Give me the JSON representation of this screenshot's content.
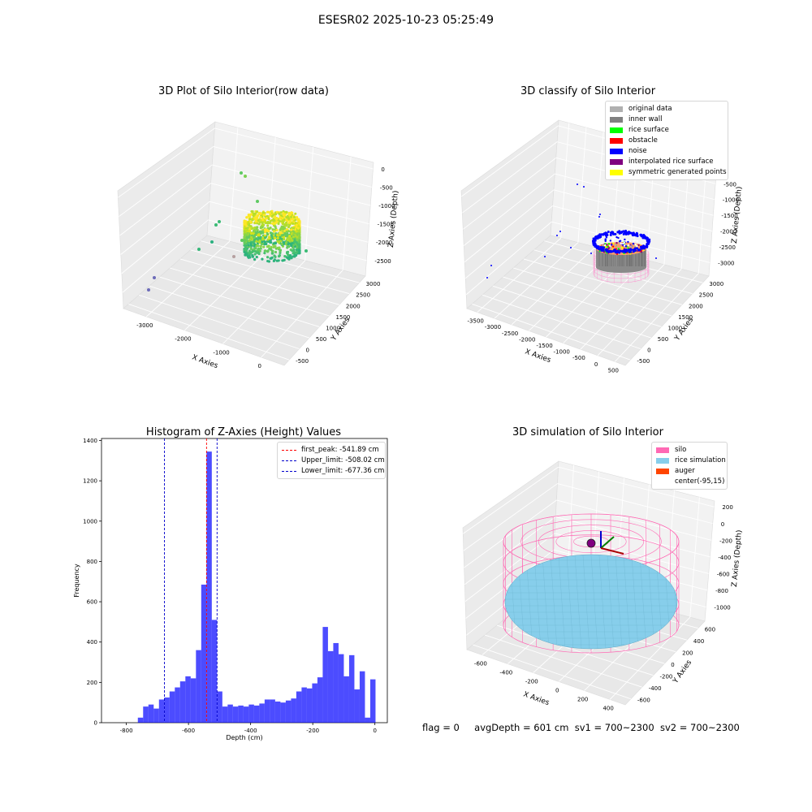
{
  "figure": {
    "title": "ESESR02 2025-10-23 05:25:49",
    "status": {
      "flag": "flag = 0",
      "avg_depth": "avgDepth = 601 cm",
      "sv1": "sv1 = 700~2300",
      "sv2": "sv2 = 700~2300"
    }
  },
  "panels": {
    "raw": {
      "title": "3D Plot of Silo Interior(row data)",
      "xlabel": "X Axies",
      "ylabel": "Y Axies",
      "zlabel": "Z Axies (Depth)",
      "xticks": [
        "-3000",
        "-2000",
        "-1000",
        "0"
      ],
      "yticks": [
        "-500",
        "0",
        "500",
        "1000",
        "1500",
        "2000",
        "2500",
        "3000"
      ],
      "zticks": [
        "0",
        "-500",
        "-1000",
        "-1500",
        "-2000",
        "-2500"
      ]
    },
    "classify": {
      "title": "3D classify of Silo Interior",
      "xlabel": "X Axies",
      "ylabel": "Y Axies",
      "zlabel": "Z Axies (Depth)",
      "xticks": [
        "-3500",
        "-3000",
        "-2500",
        "-2000",
        "-1500",
        "-1000",
        "-500",
        "0",
        "500"
      ],
      "yticks": [
        "-500",
        "0",
        "500",
        "1000",
        "1500",
        "2000",
        "2500",
        "3000"
      ],
      "zticks": [
        "0",
        "-500",
        "-1000",
        "-1500",
        "-2000",
        "-2500",
        "-3000"
      ],
      "legend": [
        {
          "label": "original data",
          "color": "#b0b0b0"
        },
        {
          "label": "inner wall",
          "color": "#808080"
        },
        {
          "label": "rice surface",
          "color": "#00ff00"
        },
        {
          "label": "obstacle",
          "color": "#ff0000"
        },
        {
          "label": "noise",
          "color": "#0000ff"
        },
        {
          "label": "interpolated rice surface",
          "color": "#800080"
        },
        {
          "label": "symmetric generated points",
          "color": "#ffff00"
        }
      ]
    },
    "histogram": {
      "title": "Histogram of Z-Axies (Height) Values",
      "xlabel": "Depth (cm)",
      "ylabel": "Frequency",
      "legend": [
        {
          "label": "first_peak: -541.89 cm",
          "color": "#ff0000"
        },
        {
          "label": "Upper_limit: -508.02 cm",
          "color": "#0000cc"
        },
        {
          "label": "Lower_limit: -677.36 cm",
          "color": "#0000cc"
        }
      ]
    },
    "simulation": {
      "title": "3D simulation of Silo Interior",
      "xlabel": "X Axies",
      "ylabel": "Y Axies",
      "zlabel": "Z Axies (Depth)",
      "xticks": [
        "-600",
        "-400",
        "-200",
        "0",
        "200",
        "400"
      ],
      "yticks": [
        "-600",
        "-400",
        "-200",
        "0",
        "200",
        "400",
        "600"
      ],
      "zticks": [
        "200",
        "0",
        "-200",
        "-400",
        "-600",
        "-800",
        "-1000"
      ],
      "legend": [
        {
          "label": "silo",
          "color": "#ff69b4"
        },
        {
          "label": "rice simulation",
          "color": "#87ceeb"
        },
        {
          "label": "auger",
          "color": "#ff4500"
        },
        {
          "label": "center(-95,15)",
          "color": "#ffffff"
        }
      ]
    }
  },
  "chart_data": [
    {
      "type": "scatter",
      "title": "3D Plot of Silo Interior(row data)",
      "xlabel": "X Axies",
      "ylabel": "Y Axies",
      "zlabel": "Z Axies (Depth)",
      "xlim": [
        -3600,
        500
      ],
      "ylim": [
        -600,
        3200
      ],
      "zlim": [
        -2700,
        100
      ]
    },
    {
      "type": "scatter",
      "title": "3D classify of Silo Interior",
      "xlabel": "X Axies",
      "ylabel": "Y Axies",
      "zlabel": "Z Axies (Depth)",
      "xlim": [
        -3600,
        500
      ],
      "ylim": [
        -600,
        3200
      ],
      "zlim": [
        -3300,
        100
      ],
      "series": [
        {
          "name": "original data"
        },
        {
          "name": "inner wall"
        },
        {
          "name": "rice surface"
        },
        {
          "name": "obstacle"
        },
        {
          "name": "noise"
        },
        {
          "name": "interpolated rice surface"
        },
        {
          "name": "symmetric generated points"
        }
      ]
    },
    {
      "type": "bar",
      "title": "Histogram of Z-Axies (Height) Values",
      "xlabel": "Depth (cm)",
      "ylabel": "Frequency",
      "xlim": [
        -880,
        40
      ],
      "ylim": [
        0,
        1410
      ],
      "xticks": [
        -800,
        -600,
        -400,
        -200,
        0
      ],
      "yticks": [
        0,
        200,
        400,
        600,
        800,
        1000,
        1200,
        1400
      ],
      "bin_start": -763,
      "bin_width": 17,
      "values": [
        25,
        80,
        90,
        70,
        115,
        125,
        155,
        175,
        205,
        230,
        220,
        360,
        685,
        1345,
        510,
        155,
        80,
        90,
        80,
        85,
        80,
        90,
        85,
        95,
        115,
        115,
        105,
        100,
        110,
        120,
        155,
        175,
        170,
        195,
        225,
        475,
        355,
        395,
        340,
        230,
        335,
        165,
        255,
        25,
        215
      ],
      "vlines": [
        {
          "label": "first_peak: -541.89 cm",
          "x": -541.89
        },
        {
          "label": "Upper_limit: -508.02 cm",
          "x": -508.02
        },
        {
          "label": "Lower_limit: -677.36 cm",
          "x": -677.36
        }
      ]
    },
    {
      "type": "scatter",
      "title": "3D simulation of Silo Interior",
      "xlabel": "X Axies",
      "ylabel": "Y Axies",
      "zlabel": "Z Axies (Depth)",
      "xlim": [
        -700,
        500
      ],
      "ylim": [
        -700,
        700
      ],
      "zlim": [
        -1050,
        300
      ],
      "series": [
        {
          "name": "silo"
        },
        {
          "name": "rice simulation"
        },
        {
          "name": "auger"
        },
        {
          "name": "center(-95,15)"
        }
      ]
    }
  ]
}
